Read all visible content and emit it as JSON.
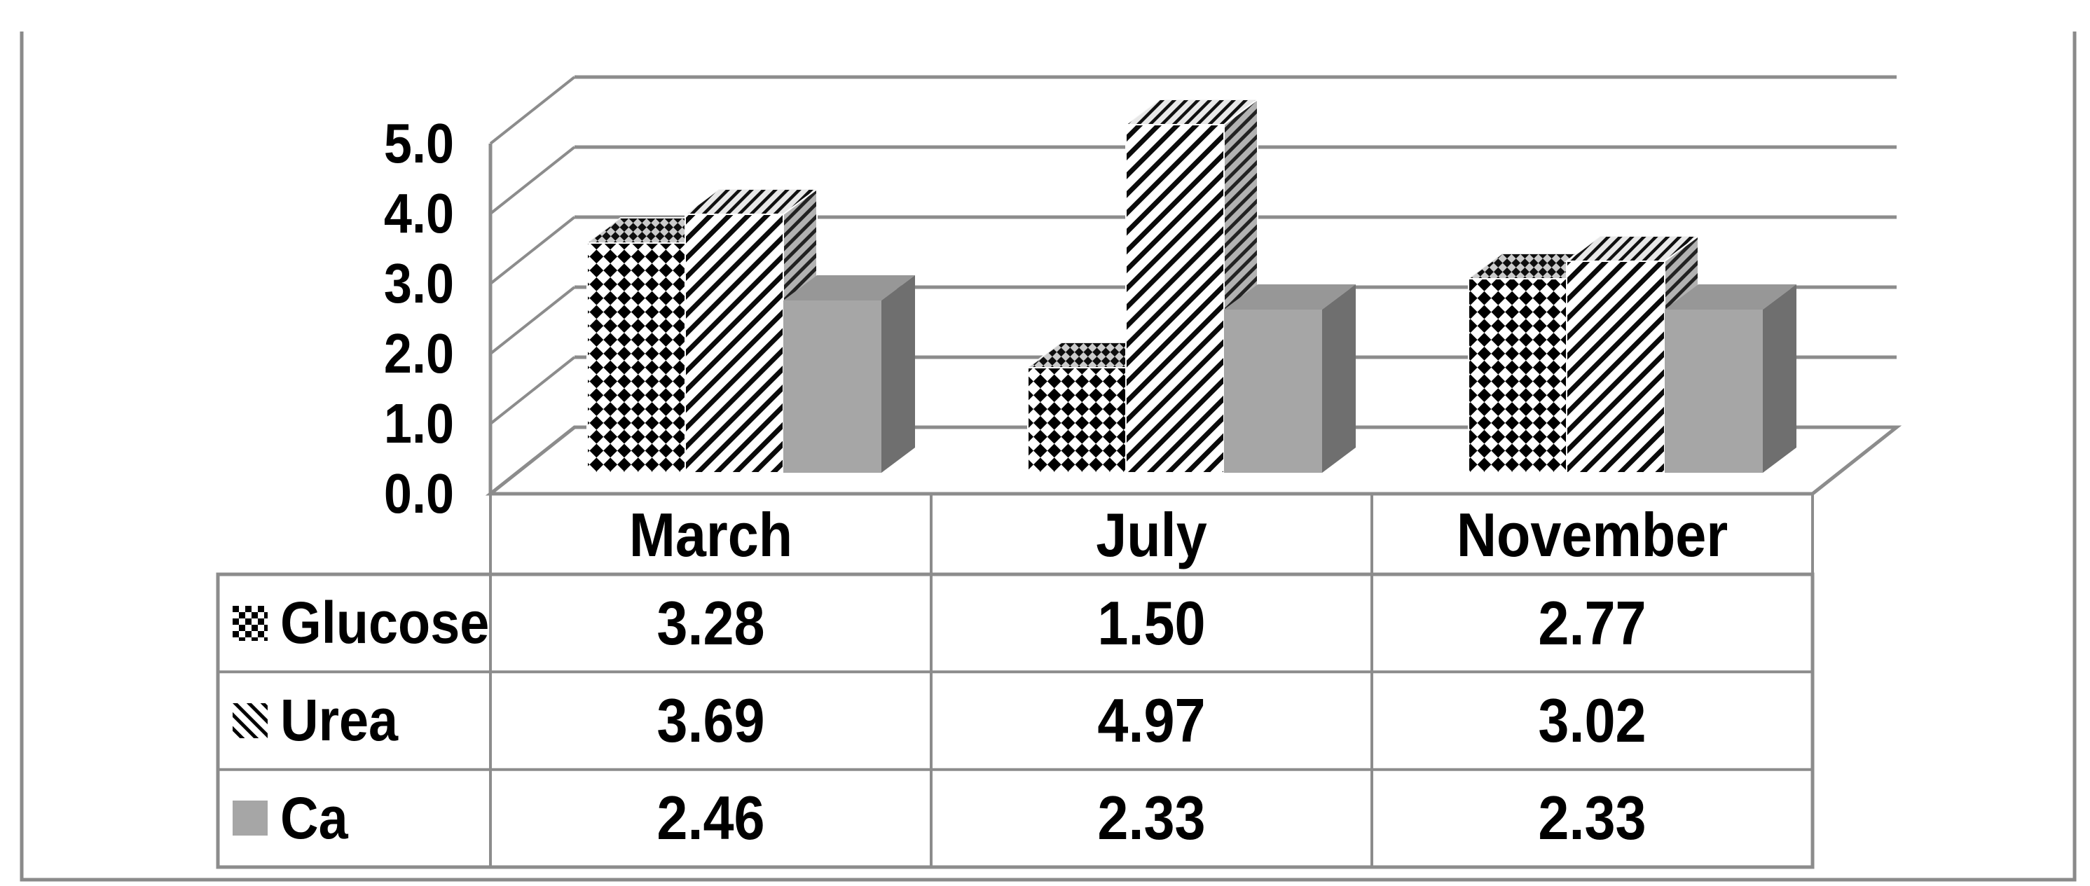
{
  "figure": {
    "background": "#ffffff",
    "border_color": "#8a8a8a",
    "line_color": "#8c8c8c"
  },
  "chart": {
    "y_tick_labels": [
      "0.0",
      "1.0",
      "2.0",
      "3.0",
      "4.0",
      "5.0"
    ],
    "gridline_color": "#8c8c8c"
  },
  "chart_data": {
    "type": "bar",
    "subtype": "3d-clustered-column",
    "title": "",
    "xlabel": "",
    "ylabel": "",
    "categories": [
      "March",
      "July",
      "November"
    ],
    "series": [
      {
        "name": "Glucose",
        "pattern": "checkerboard",
        "values": [
          3.28,
          1.5,
          2.77
        ]
      },
      {
        "name": "Urea",
        "pattern": "diagonal-stripes",
        "values": [
          3.69,
          4.97,
          3.02
        ]
      },
      {
        "name": "Ca",
        "pattern": "solid",
        "color": "#a6a6a6",
        "color_top": "#979797",
        "color_side": "#6f6f6f",
        "values": [
          2.46,
          2.33,
          2.33
        ]
      }
    ],
    "ylim": [
      0,
      5
    ],
    "y_tick_step": 1.0,
    "grid": true,
    "legend_position": "table-left-column"
  },
  "table": {
    "header": [
      "March",
      "July",
      "November"
    ],
    "rows": [
      {
        "label": "Glucose",
        "swatch": "checkerboard",
        "values": [
          "3.28",
          "1.50",
          "2.77"
        ]
      },
      {
        "label": "Urea",
        "swatch": "diagonal-stripes",
        "values": [
          "3.69",
          "4.97",
          "3.02"
        ]
      },
      {
        "label": "Ca",
        "swatch": "solid-gray",
        "values": [
          "2.46",
          "2.33",
          "2.33"
        ]
      }
    ],
    "border_color": "#8c8c8c"
  }
}
